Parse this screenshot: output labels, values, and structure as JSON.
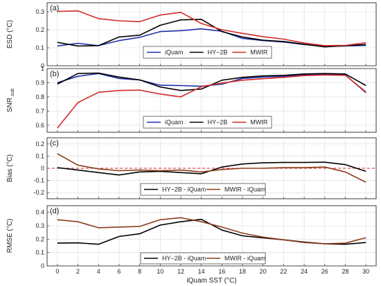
{
  "chart_data": [
    {
      "panel_label": "(a)",
      "type": "line",
      "ylabel": "ESD (°C)",
      "ylim": [
        0,
        0.35
      ],
      "yticks": [
        0,
        0.1,
        0.2,
        0.3
      ],
      "ytick_labels": [
        "0",
        "0.1",
        "0.2",
        "0.3"
      ],
      "x": [
        0,
        2,
        4,
        6,
        8,
        10,
        12,
        14,
        16,
        18,
        20,
        22,
        24,
        26,
        28,
        30
      ],
      "series": [
        {
          "name": "iQuam",
          "color": "#1f2fa8",
          "values": [
            0.11,
            0.125,
            0.112,
            0.14,
            0.158,
            0.19,
            0.195,
            0.205,
            0.192,
            0.152,
            0.14,
            0.132,
            0.118,
            0.108,
            0.11,
            0.113
          ]
        },
        {
          "name": "HY−2B",
          "color": "#000000",
          "values": [
            0.13,
            0.11,
            0.112,
            0.16,
            0.17,
            0.225,
            0.255,
            0.258,
            0.19,
            0.16,
            0.142,
            0.135,
            0.12,
            0.105,
            0.112,
            0.118
          ]
        },
        {
          "name": "MWIR",
          "color": "#d62728",
          "values": [
            0.302,
            0.305,
            0.262,
            0.25,
            0.245,
            0.282,
            0.297,
            0.235,
            0.2,
            0.18,
            0.162,
            0.148,
            0.126,
            0.112,
            0.113,
            0.128
          ]
        }
      ],
      "legend": {
        "placement": "bottom-center",
        "entries": [
          "iQuam",
          "HY−2B",
          "MWIR"
        ]
      }
    },
    {
      "panel_label": "(b)",
      "type": "line",
      "ylabel": "SNR",
      "ylabel_sub": "sub",
      "ylim": [
        0.55,
        1.0
      ],
      "yticks": [
        0.6,
        0.7,
        0.8,
        0.9,
        1.0
      ],
      "ytick_labels": [
        "0.6",
        "0.7",
        "0.8",
        "0.9",
        "1"
      ],
      "x": [
        0,
        2,
        4,
        6,
        8,
        10,
        12,
        14,
        16,
        18,
        20,
        22,
        24,
        26,
        28,
        30
      ],
      "series": [
        {
          "name": "iQuam",
          "color": "#1f2fa8",
          "values": [
            0.9,
            0.945,
            0.965,
            0.93,
            0.92,
            0.882,
            0.88,
            0.875,
            0.89,
            0.93,
            0.94,
            0.945,
            0.955,
            0.96,
            0.955,
            0.83
          ]
        },
        {
          "name": "HY−2B",
          "color": "#000000",
          "values": [
            0.89,
            0.965,
            0.968,
            0.94,
            0.92,
            0.87,
            0.845,
            0.855,
            0.918,
            0.938,
            0.948,
            0.952,
            0.962,
            0.965,
            0.962,
            0.88
          ]
        },
        {
          "name": "MWIR",
          "color": "#d62728",
          "values": [
            0.58,
            0.76,
            0.832,
            0.845,
            0.848,
            0.82,
            0.8,
            0.872,
            0.898,
            0.918,
            0.928,
            0.938,
            0.95,
            0.955,
            0.952,
            0.835
          ]
        }
      ],
      "legend": {
        "placement": "bottom-center",
        "entries": [
          "iQuam",
          "HY−2B",
          "MWIR"
        ]
      }
    },
    {
      "panel_label": "(c)",
      "type": "line",
      "ylabel": "Bias (°C)",
      "ylim": [
        -0.25,
        0.25
      ],
      "yticks": [
        -0.2,
        -0.1,
        0,
        0.1,
        0.2
      ],
      "ytick_labels": [
        "-0.2",
        "-0.1",
        "0",
        "0.1",
        "0.2"
      ],
      "zero_line": {
        "value": 0,
        "color": "#d62728",
        "style": "dashed"
      },
      "x": [
        0,
        2,
        4,
        6,
        8,
        10,
        12,
        14,
        16,
        18,
        20,
        22,
        24,
        26,
        28,
        30
      ],
      "series": [
        {
          "name": "HY−2B - iQuam",
          "color": "#000000",
          "values": [
            0.005,
            -0.015,
            -0.035,
            -0.055,
            -0.03,
            -0.025,
            -0.035,
            -0.045,
            0.01,
            0.035,
            0.045,
            0.048,
            0.048,
            0.05,
            0.03,
            -0.025
          ]
        },
        {
          "name": "MWIR - iQuam",
          "color": "#8b3a1a",
          "values": [
            0.12,
            0.025,
            -0.005,
            -0.02,
            -0.015,
            -0.02,
            -0.015,
            -0.03,
            -0.01,
            0.0,
            0.0,
            0.005,
            0.005,
            0.01,
            -0.03,
            -0.115
          ]
        }
      ],
      "legend": {
        "placement": "bottom-center",
        "entries": [
          "HY−2B - iQuam",
          "MWIR - iQuam"
        ]
      }
    },
    {
      "panel_label": "(d)",
      "type": "line",
      "ylabel": "RMSE (°C)",
      "xlabel": "iQuam SST (°C)",
      "ylim": [
        0,
        0.45
      ],
      "yticks": [
        0,
        0.1,
        0.2,
        0.3,
        0.4
      ],
      "ytick_labels": [
        "0",
        "0.1",
        "0.2",
        "0.3",
        "0.4"
      ],
      "xlim": [
        -1,
        31
      ],
      "xticks": [
        0,
        2,
        4,
        6,
        8,
        10,
        12,
        14,
        16,
        18,
        20,
        22,
        24,
        26,
        28,
        30
      ],
      "xtick_labels": [
        "0",
        "2",
        "4",
        "6",
        "8",
        "10",
        "12",
        "14",
        "16",
        "18",
        "20",
        "22",
        "24",
        "26",
        "28",
        "30"
      ],
      "x": [
        0,
        2,
        4,
        6,
        8,
        10,
        12,
        14,
        16,
        18,
        20,
        22,
        24,
        26,
        28,
        30
      ],
      "series": [
        {
          "name": "HY−2B - iQuam",
          "color": "#000000",
          "values": [
            0.17,
            0.172,
            0.162,
            0.22,
            0.24,
            0.305,
            0.33,
            0.348,
            0.268,
            0.225,
            0.21,
            0.195,
            0.178,
            0.165,
            0.162,
            0.175
          ]
        },
        {
          "name": "MWIR - iQuam",
          "color": "#8b3a1a",
          "values": [
            0.345,
            0.33,
            0.285,
            0.29,
            0.295,
            0.345,
            0.36,
            0.33,
            0.29,
            0.245,
            0.215,
            0.195,
            0.175,
            0.165,
            0.17,
            0.21
          ]
        }
      ],
      "legend": {
        "placement": "bottom-center",
        "entries": [
          "HY−2B - iQuam",
          "MWIR - iQuam"
        ]
      }
    }
  ],
  "shared_x": {
    "xlim": [
      -1,
      31
    ],
    "xticks": [
      0,
      2,
      4,
      6,
      8,
      10,
      12,
      14,
      16,
      18,
      20,
      22,
      24,
      26,
      28,
      30
    ],
    "grid": true
  }
}
